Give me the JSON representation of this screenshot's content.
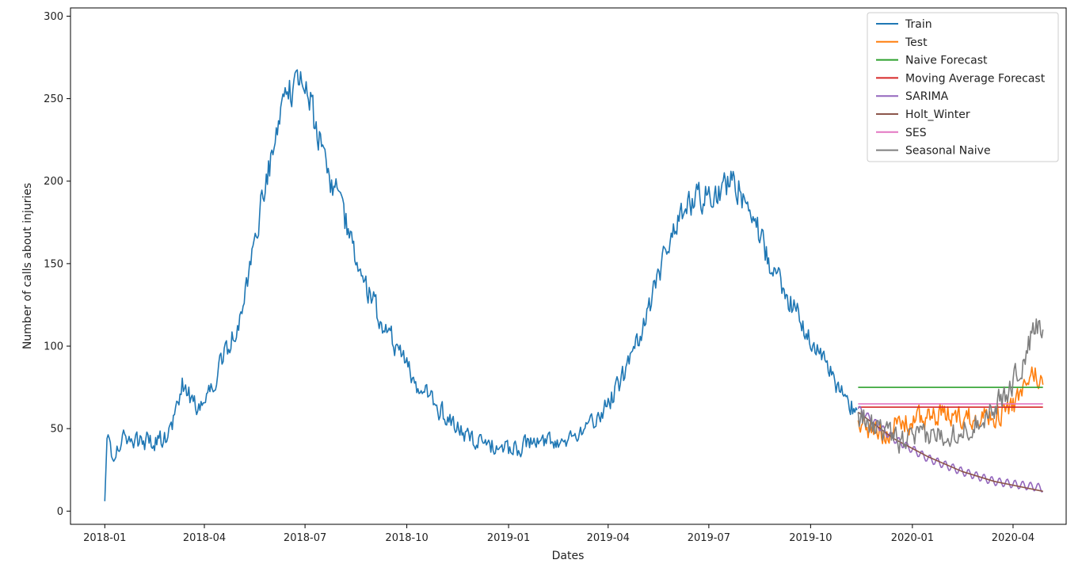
{
  "chart_data": {
    "type": "line",
    "title": "",
    "xlabel": "Dates",
    "ylabel": "Number of calls about injuries",
    "x_axis": {
      "start": "2017-12-01",
      "end": "2020-05-19"
    },
    "ylim": [
      -8,
      305
    ],
    "yticks": [
      0,
      50,
      100,
      150,
      200,
      250,
      300
    ],
    "xticks": [
      {
        "date": "2018-01-01",
        "label": "2018-01"
      },
      {
        "date": "2018-04-01",
        "label": "2018-04"
      },
      {
        "date": "2018-07-01",
        "label": "2018-07"
      },
      {
        "date": "2018-10-01",
        "label": "2018-10"
      },
      {
        "date": "2019-01-01",
        "label": "2019-01"
      },
      {
        "date": "2019-04-01",
        "label": "2019-04"
      },
      {
        "date": "2019-07-01",
        "label": "2019-07"
      },
      {
        "date": "2019-10-01",
        "label": "2019-10"
      },
      {
        "date": "2020-01-01",
        "label": "2020-01"
      },
      {
        "date": "2020-04-01",
        "label": "2020-04"
      }
    ],
    "grid": false,
    "legend_position": "top-right",
    "series": [
      {
        "name": "Train",
        "color": "#1f77b4",
        "jitter": 11,
        "anchors": [
          [
            "2018-01-01",
            6
          ],
          [
            "2018-01-03",
            45
          ],
          [
            "2018-01-08",
            35
          ],
          [
            "2018-01-20",
            44
          ],
          [
            "2018-02-10",
            42
          ],
          [
            "2018-03-01",
            46
          ],
          [
            "2018-03-12",
            76
          ],
          [
            "2018-03-25",
            65
          ],
          [
            "2018-04-05",
            72
          ],
          [
            "2018-04-20",
            95
          ],
          [
            "2018-05-05",
            118
          ],
          [
            "2018-05-15",
            160
          ],
          [
            "2018-05-25",
            195
          ],
          [
            "2018-06-05",
            225
          ],
          [
            "2018-06-15",
            250
          ],
          [
            "2018-06-24",
            268
          ],
          [
            "2018-07-05",
            250
          ],
          [
            "2018-07-15",
            220
          ],
          [
            "2018-07-28",
            195
          ],
          [
            "2018-08-10",
            168
          ],
          [
            "2018-08-22",
            140
          ],
          [
            "2018-09-05",
            120
          ],
          [
            "2018-09-20",
            100
          ],
          [
            "2018-10-05",
            82
          ],
          [
            "2018-10-20",
            68
          ],
          [
            "2018-11-05",
            58
          ],
          [
            "2018-11-20",
            48
          ],
          [
            "2018-12-10",
            40
          ],
          [
            "2019-01-01",
            37
          ],
          [
            "2019-01-20",
            40
          ],
          [
            "2019-02-10",
            43
          ],
          [
            "2019-03-01",
            46
          ],
          [
            "2019-03-20",
            55
          ],
          [
            "2019-04-05",
            70
          ],
          [
            "2019-04-20",
            90
          ],
          [
            "2019-05-05",
            118
          ],
          [
            "2019-05-20",
            150
          ],
          [
            "2019-06-05",
            180
          ],
          [
            "2019-06-20",
            188
          ],
          [
            "2019-07-05",
            195
          ],
          [
            "2019-07-25",
            200
          ],
          [
            "2019-08-10",
            178
          ],
          [
            "2019-08-25",
            150
          ],
          [
            "2019-09-10",
            128
          ],
          [
            "2019-09-25",
            112
          ],
          [
            "2019-10-10",
            95
          ],
          [
            "2019-10-25",
            75
          ],
          [
            "2019-11-12",
            58
          ]
        ]
      },
      {
        "name": "Test",
        "color": "#ff7f0e",
        "jitter": 13,
        "anchors": [
          [
            "2019-11-13",
            55
          ],
          [
            "2019-12-01",
            47
          ],
          [
            "2019-12-20",
            52
          ],
          [
            "2020-01-10",
            56
          ],
          [
            "2020-02-01",
            58
          ],
          [
            "2020-02-20",
            57
          ],
          [
            "2020-03-10",
            58
          ],
          [
            "2020-03-25",
            60
          ],
          [
            "2020-04-10",
            70
          ],
          [
            "2020-04-20",
            85
          ],
          [
            "2020-04-28",
            75
          ]
        ]
      },
      {
        "name": "Naive Forecast",
        "color": "#2ca02c",
        "jitter": 0,
        "anchors": [
          [
            "2019-11-13",
            75
          ],
          [
            "2020-04-28",
            75
          ]
        ]
      },
      {
        "name": "Moving Average Forecast",
        "color": "#d62728",
        "jitter": 0,
        "anchors": [
          [
            "2019-11-13",
            63
          ],
          [
            "2020-04-28",
            63
          ]
        ]
      },
      {
        "name": "SARIMA",
        "color": "#9467bd",
        "jitter": 0,
        "osc": 2.5,
        "anchors": [
          [
            "2019-11-13",
            62
          ],
          [
            "2019-12-15",
            44
          ],
          [
            "2020-01-15",
            32
          ],
          [
            "2020-02-15",
            24
          ],
          [
            "2020-03-15",
            18
          ],
          [
            "2020-04-28",
            14
          ]
        ]
      },
      {
        "name": "Holt_Winter",
        "color": "#8c564b",
        "jitter": 0,
        "anchors": [
          [
            "2019-11-13",
            60
          ],
          [
            "2019-12-15",
            44
          ],
          [
            "2020-01-15",
            33
          ],
          [
            "2020-02-15",
            24
          ],
          [
            "2020-03-15",
            18
          ],
          [
            "2020-04-28",
            12
          ]
        ]
      },
      {
        "name": "SES",
        "color": "#e377c2",
        "jitter": 0,
        "anchors": [
          [
            "2019-11-13",
            65
          ],
          [
            "2020-04-28",
            65
          ]
        ]
      },
      {
        "name": "Seasonal Naive",
        "color": "#7f7f7f",
        "jitter": 13,
        "anchors": [
          [
            "2019-11-13",
            60
          ],
          [
            "2019-12-01",
            50
          ],
          [
            "2019-12-20",
            42
          ],
          [
            "2020-01-10",
            45
          ],
          [
            "2020-02-01",
            47
          ],
          [
            "2020-02-20",
            50
          ],
          [
            "2020-03-10",
            60
          ],
          [
            "2020-03-25",
            70
          ],
          [
            "2020-04-10",
            90
          ],
          [
            "2020-04-22",
            112
          ],
          [
            "2020-04-28",
            107
          ]
        ]
      }
    ]
  }
}
